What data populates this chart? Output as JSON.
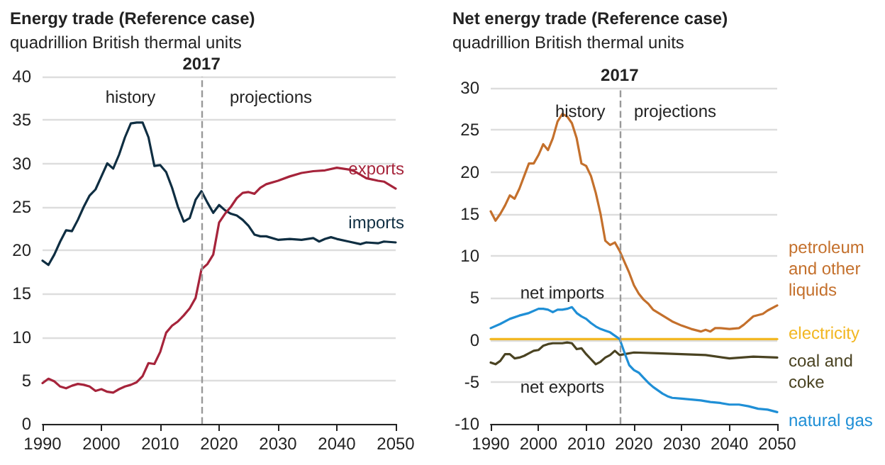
{
  "chart_data": [
    {
      "type": "line",
      "title": "Energy trade (Reference case)",
      "subtitle": "quadrillion British thermal units",
      "xlim": [
        1990,
        2050
      ],
      "xticks": [
        1990,
        2000,
        2010,
        2020,
        2030,
        2040,
        2050
      ],
      "ylim": [
        0,
        40
      ],
      "yticks": [
        0,
        5,
        10,
        15,
        20,
        25,
        30,
        35,
        40
      ],
      "grid": "y",
      "marker": "none",
      "line_style": "solid",
      "ref_lines": [
        {
          "axis": "x",
          "value": 2017,
          "label": "2017",
          "color": "#999999",
          "line_style": "dashed"
        }
      ],
      "annotations": [
        "history",
        "projections"
      ],
      "series": [
        {
          "name": "imports",
          "color": "#0f2e42",
          "x": [
            1990,
            1991,
            1992,
            1993,
            1994,
            1995,
            1996,
            1997,
            1998,
            1999,
            2000,
            2001,
            2002,
            2003,
            2004,
            2005,
            2006,
            2007,
            2008,
            2009,
            2010,
            2011,
            2012,
            2013,
            2014,
            2015,
            2016,
            2017,
            2018,
            2019,
            2020,
            2021,
            2022,
            2023,
            2024,
            2025,
            2026,
            2027,
            2028,
            2030,
            2032,
            2034,
            2036,
            2037,
            2038,
            2039,
            2040,
            2042,
            2044,
            2045,
            2047,
            2048,
            2050
          ],
          "values": [
            18.8,
            18.3,
            19.5,
            21,
            22.3,
            22.2,
            23.5,
            25,
            26.3,
            27,
            28.5,
            30,
            29.4,
            31,
            33,
            34.6,
            34.7,
            34.7,
            33,
            29.7,
            29.8,
            29,
            27.2,
            25,
            23.3,
            23.7,
            25.8,
            26.8,
            25.5,
            24.3,
            25.2,
            24.6,
            24.2,
            24,
            23.5,
            22.8,
            21.8,
            21.6,
            21.6,
            21.2,
            21.3,
            21.2,
            21.4,
            21,
            21.3,
            21.5,
            21.3,
            21,
            20.7,
            20.9,
            20.8,
            21,
            20.9
          ]
        },
        {
          "name": "exports",
          "color": "#a6243b",
          "x": [
            1990,
            1991,
            1992,
            1993,
            1994,
            1995,
            1996,
            1997,
            1998,
            1999,
            2000,
            2001,
            2002,
            2003,
            2004,
            2005,
            2006,
            2007,
            2008,
            2009,
            2010,
            2011,
            2012,
            2013,
            2014,
            2015,
            2016,
            2017,
            2018,
            2019,
            2020,
            2021,
            2022,
            2023,
            2024,
            2025,
            2026,
            2027,
            2028,
            2030,
            2032,
            2034,
            2036,
            2038,
            2040,
            2042,
            2043,
            2045,
            2047,
            2048,
            2050
          ],
          "values": [
            4.7,
            5.2,
            4.9,
            4.3,
            4.1,
            4.4,
            4.6,
            4.5,
            4.3,
            3.8,
            4,
            3.7,
            3.6,
            4,
            4.3,
            4.5,
            4.8,
            5.5,
            7,
            6.9,
            8.3,
            10.5,
            11.3,
            11.8,
            12.5,
            13.3,
            14.5,
            17.8,
            18.4,
            19.5,
            23.2,
            24.2,
            25,
            26,
            26.6,
            26.7,
            26.5,
            27.2,
            27.6,
            28,
            28.5,
            28.9,
            29.1,
            29.2,
            29.5,
            29.3,
            29.1,
            28.3,
            28,
            27.9,
            27.1
          ]
        }
      ]
    },
    {
      "type": "line",
      "title": "Net energy trade (Reference case)",
      "subtitle": "quadrillion British thermal units",
      "xlim": [
        1990,
        2050
      ],
      "xticks": [
        1990,
        2000,
        2010,
        2020,
        2030,
        2040,
        2050
      ],
      "ylim": [
        -10,
        30
      ],
      "yticks": [
        -10,
        -5,
        0,
        5,
        10,
        15,
        20,
        25,
        30
      ],
      "grid": "y",
      "marker": "none",
      "line_style": "solid",
      "ref_lines": [
        {
          "axis": "x",
          "value": 2017,
          "label": "2017",
          "color": "#999999",
          "line_style": "dashed"
        }
      ],
      "annotations": [
        "history",
        "projections",
        "net imports",
        "net exports"
      ],
      "series": [
        {
          "name": "petroleum and other liquids",
          "color": "#c4702c",
          "x": [
            1990,
            1991,
            1992,
            1993,
            1994,
            1995,
            1996,
            1997,
            1998,
            1999,
            2000,
            2001,
            2002,
            2003,
            2004,
            2005,
            2006,
            2007,
            2008,
            2009,
            2010,
            2011,
            2012,
            2013,
            2014,
            2015,
            2016,
            2017,
            2018,
            2019,
            2020,
            2021,
            2022,
            2023,
            2024,
            2026,
            2028,
            2030,
            2032,
            2034,
            2035,
            2036,
            2037,
            2038,
            2040,
            2042,
            2043,
            2045,
            2047,
            2048,
            2050
          ],
          "values": [
            15.3,
            14.2,
            15,
            16,
            17.2,
            16.8,
            18,
            19.5,
            21,
            21,
            22,
            23.3,
            22.6,
            24,
            26,
            26.9,
            26.6,
            25.8,
            24,
            21,
            20.7,
            19.5,
            17.5,
            15,
            11.8,
            11.3,
            11.6,
            10.6,
            9.3,
            8,
            6.5,
            5.5,
            4.8,
            4.3,
            3.6,
            2.9,
            2.2,
            1.7,
            1.3,
            1,
            1.2,
            1,
            1.4,
            1.4,
            1.3,
            1.4,
            1.8,
            2.8,
            3.1,
            3.5,
            4.1
          ]
        },
        {
          "name": "electricity",
          "color": "#f2b722",
          "x": [
            1990,
            2000,
            2010,
            2020,
            2030,
            2040,
            2050
          ],
          "values": [
            0.1,
            0.1,
            0.1,
            0.1,
            0.1,
            0.1,
            0.1
          ]
        },
        {
          "name": "coal and coke",
          "color": "#4a4322",
          "x": [
            1990,
            1991,
            1992,
            1993,
            1994,
            1995,
            1996,
            1997,
            1998,
            1999,
            2000,
            2001,
            2002,
            2003,
            2004,
            2005,
            2006,
            2007,
            2008,
            2009,
            2010,
            2011,
            2012,
            2013,
            2014,
            2015,
            2016,
            2017,
            2018,
            2020,
            2025,
            2030,
            2035,
            2040,
            2045,
            2050
          ],
          "values": [
            -2.7,
            -2.9,
            -2.5,
            -1.7,
            -1.7,
            -2.2,
            -2.1,
            -1.9,
            -1.6,
            -1.3,
            -1.2,
            -0.7,
            -0.5,
            -0.4,
            -0.4,
            -0.4,
            -0.3,
            -0.4,
            -1.1,
            -1,
            -1.7,
            -2.3,
            -2.9,
            -2.6,
            -2.1,
            -1.8,
            -1.3,
            -1.8,
            -1.7,
            -1.5,
            -1.6,
            -1.7,
            -1.8,
            -2.2,
            -2,
            -2.1
          ]
        },
        {
          "name": "natural gas",
          "color": "#1f8fd6",
          "x": [
            1990,
            1992,
            1994,
            1996,
            1998,
            2000,
            2001,
            2002,
            2003,
            2004,
            2005,
            2006,
            2007,
            2008,
            2009,
            2010,
            2011,
            2012,
            2013,
            2014,
            2015,
            2016,
            2017,
            2018,
            2019,
            2020,
            2021,
            2022,
            2023,
            2024,
            2025,
            2026,
            2027,
            2028,
            2030,
            2032,
            2034,
            2036,
            2038,
            2040,
            2042,
            2044,
            2046,
            2048,
            2050
          ],
          "values": [
            1.4,
            1.9,
            2.5,
            2.9,
            3.2,
            3.7,
            3.7,
            3.6,
            3.3,
            3.6,
            3.6,
            3.7,
            3.9,
            3.2,
            2.8,
            2.5,
            2,
            1.6,
            1.3,
            1.1,
            0.9,
            0.5,
            0.1,
            -1.5,
            -3,
            -3.6,
            -3.9,
            -4.5,
            -5.1,
            -5.6,
            -6,
            -6.4,
            -6.7,
            -6.9,
            -7,
            -7.1,
            -7.2,
            -7.4,
            -7.5,
            -7.7,
            -7.7,
            -7.9,
            -8.2,
            -8.3,
            -8.6
          ]
        }
      ]
    }
  ]
}
